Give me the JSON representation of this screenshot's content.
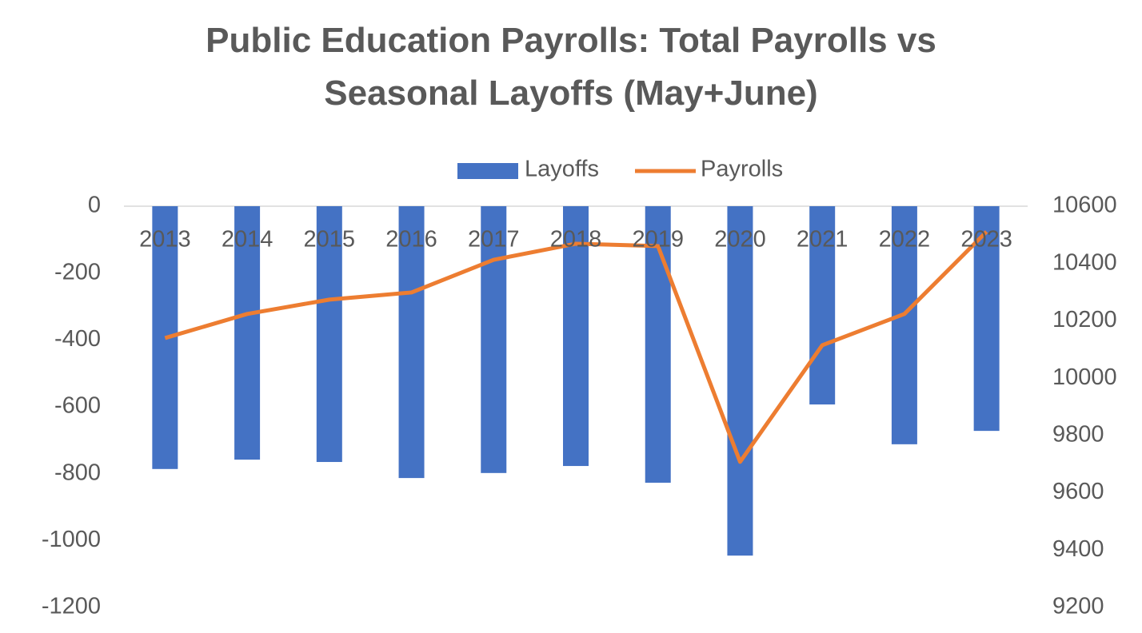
{
  "chart_data": {
    "type": "combo",
    "title": "Public Education Payrolls: Total Payrolls vs Seasonal Layoffs (May+June)",
    "categories": [
      "2013",
      "2014",
      "2015",
      "2016",
      "2017",
      "2018",
      "2019",
      "2020",
      "2021",
      "2022",
      "2023"
    ],
    "series": [
      {
        "name": "Layoffs",
        "type": "bar",
        "color": "#4472c4",
        "values": [
          -786,
          -758,
          -765,
          -813,
          -798,
          -777,
          -827,
          -1045,
          -593,
          -712,
          -672
        ]
      },
      {
        "name": "Payrolls",
        "type": "line",
        "axis": "y2",
        "color": "#ed7d31",
        "values": [
          10140,
          10224,
          10274,
          10299,
          10413,
          10469,
          10461,
          9708,
          10115,
          10224,
          10511
        ]
      }
    ],
    "ylim": [
      -1200,
      0
    ],
    "yticks": [
      0,
      -200,
      -400,
      -600,
      -800,
      -1000,
      -1200
    ],
    "y2lim": [
      9200,
      10600
    ],
    "y2ticks": [
      10600,
      10400,
      10200,
      10000,
      9800,
      9600,
      9400,
      9200
    ],
    "grid": false,
    "legend": "top"
  }
}
